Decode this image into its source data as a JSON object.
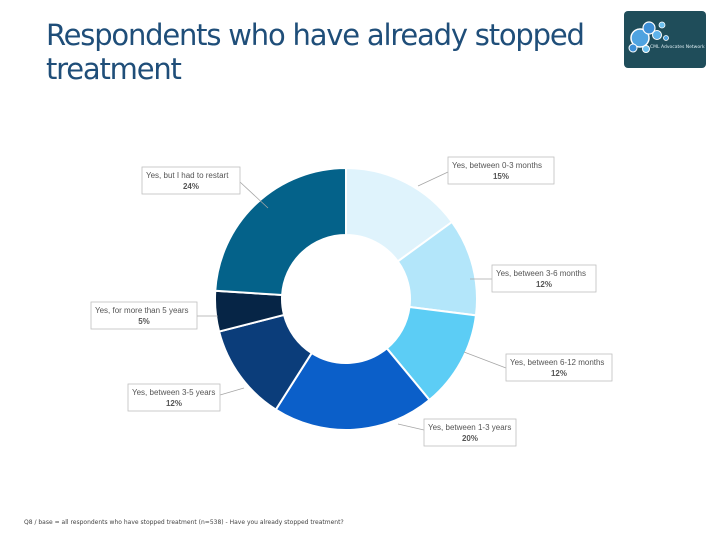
{
  "title": "Respondents who have already stopped treatment",
  "logo": {
    "text": "CML Advocates Network"
  },
  "footnote": "Q8 / base = all respondents who have stopped treatment (n=538) - Have you already stopped treatment?",
  "chart_data": {
    "type": "pie",
    "subtype": "donut",
    "title": "Respondents who have already stopped treatment",
    "slices": [
      {
        "label": "Yes, between 0-3 months",
        "value": 15,
        "pct_label": "15%",
        "color": "#dff3fc"
      },
      {
        "label": "Yes, between 3-6 months",
        "value": 12,
        "pct_label": "12%",
        "color": "#b3e6fa"
      },
      {
        "label": "Yes, between 6-12 months",
        "value": 12,
        "pct_label": "12%",
        "color": "#5ccdf5"
      },
      {
        "label": "Yes, between 1-3 years",
        "value": 20,
        "pct_label": "20%",
        "color": "#0b5fc9"
      },
      {
        "label": "Yes, between 3-5 years",
        "value": 12,
        "pct_label": "12%",
        "color": "#0b3d7a"
      },
      {
        "label": "Yes, for more than 5 years",
        "value": 5,
        "pct_label": "5%",
        "color": "#062546"
      },
      {
        "label": "Yes, but I had to restart",
        "value": 24,
        "pct_label": "24%",
        "color": "#04628a"
      }
    ]
  }
}
